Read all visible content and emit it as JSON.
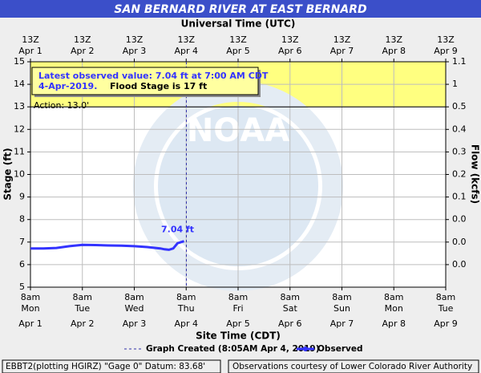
{
  "chart_data": {
    "type": "line",
    "title": "SAN BERNARD RIVER AT EAST BERNARD",
    "top_axis_label": "Universal Time (UTC)",
    "x_axis_label": "Site Time (CDT)",
    "y_axis_label": "Stage (ft)",
    "y2_axis_label": "Flow (kcfs)",
    "watermark": "NOAA",
    "xlim": [
      "Apr 1 08:00",
      "Apr 9 08:00"
    ],
    "top_ticks": [
      {
        "value": "Apr 1 08:00",
        "label": "13Z",
        "date": "Apr 1"
      },
      {
        "value": "Apr 2 08:00",
        "label": "13Z",
        "date": "Apr 2"
      },
      {
        "value": "Apr 3 08:00",
        "label": "13Z",
        "date": "Apr 3"
      },
      {
        "value": "Apr 4 08:00",
        "label": "13Z",
        "date": "Apr 4"
      },
      {
        "value": "Apr 5 08:00",
        "label": "13Z",
        "date": "Apr 5"
      },
      {
        "value": "Apr 6 08:00",
        "label": "13Z",
        "date": "Apr 6"
      },
      {
        "value": "Apr 7 08:00",
        "label": "13Z",
        "date": "Apr 7"
      },
      {
        "value": "Apr 8 08:00",
        "label": "13Z",
        "date": "Apr 8"
      },
      {
        "value": "Apr 9 08:00",
        "label": "13Z",
        "date": "Apr 9"
      }
    ],
    "xticks": [
      {
        "value": "Apr 1 08:00",
        "label": "8am",
        "weekday": "Mon",
        "date": "Apr 1"
      },
      {
        "value": "Apr 2 08:00",
        "label": "8am",
        "weekday": "Tue",
        "date": "Apr 2"
      },
      {
        "value": "Apr 3 08:00",
        "label": "8am",
        "weekday": "Wed",
        "date": "Apr 3"
      },
      {
        "value": "Apr 4 08:00",
        "label": "8am",
        "weekday": "Thu",
        "date": "Apr 4"
      },
      {
        "value": "Apr 5 08:00",
        "label": "8am",
        "weekday": "Fri",
        "date": "Apr 5"
      },
      {
        "value": "Apr 6 08:00",
        "label": "8am",
        "weekday": "Sat",
        "date": "Apr 6"
      },
      {
        "value": "Apr 7 08:00",
        "label": "8am",
        "weekday": "Sun",
        "date": "Apr 7"
      },
      {
        "value": "Apr 8 08:00",
        "label": "8am",
        "weekday": "Mon",
        "date": "Apr 8"
      },
      {
        "value": "Apr 9 08:00",
        "label": "8am",
        "weekday": "Tue",
        "date": "Apr 9"
      }
    ],
    "ylim": [
      5,
      15
    ],
    "yticks": [
      5,
      6,
      7,
      8,
      9,
      10,
      11,
      12,
      13,
      14,
      15
    ],
    "y2ticks": [
      {
        "value": 1.1,
        "label": "1.1"
      },
      1,
      {
        "value": 0.5,
        "label": "0.5"
      },
      {
        "value": 0.4,
        "label": "0.4"
      },
      {
        "value": 0.3,
        "label": "0.3"
      },
      {
        "value": 0.2,
        "label": "0.2"
      },
      {
        "value": 0.1,
        "label": "0.1"
      },
      {
        "value": 0,
        "label": "0.0"
      },
      {
        "value": 0,
        "label": "0.0"
      },
      {
        "value": 0,
        "label": "0.0"
      }
    ],
    "grid": true,
    "action_stage": 13,
    "action_label": "Action: 13.0'",
    "action_color": "#ffff80",
    "series": [
      {
        "name": "Observed",
        "color": "#3333ff",
        "x": [
          "Apr 1 08:00",
          "Apr 1 14:00",
          "Apr 1 20:00",
          "Apr 2 02:00",
          "Apr 2 08:00",
          "Apr 2 14:00",
          "Apr 2 20:00",
          "Apr 3 02:00",
          "Apr 3 08:00",
          "Apr 3 14:00",
          "Apr 3 20:00",
          "Apr 3 22:00",
          "Apr 4 00:00",
          "Apr 4 02:00",
          "Apr 4 04:00",
          "Apr 4 07:00"
        ],
        "values": [
          6.72,
          6.72,
          6.74,
          6.82,
          6.88,
          6.87,
          6.85,
          6.84,
          6.82,
          6.78,
          6.72,
          6.68,
          6.66,
          6.72,
          6.95,
          7.04
        ]
      }
    ],
    "last_value_label": "7.04 ft",
    "graph_created_time": "Apr 4 08:05",
    "graph_created_label": "Graph Created (8:05AM Apr 4, 2019)",
    "info_line1": "Latest observed value: 7.04 ft at 7:00 AM CDT",
    "info_line2a": "4-Apr-2019.",
    "info_line2b": "Flood Stage is 17 ft",
    "footer_left": "EBBT2(plotting HGIRZ) \"Gage 0\" Datum: 83.68'",
    "footer_right": "Observations courtesy of Lower Colorado River Authority"
  }
}
